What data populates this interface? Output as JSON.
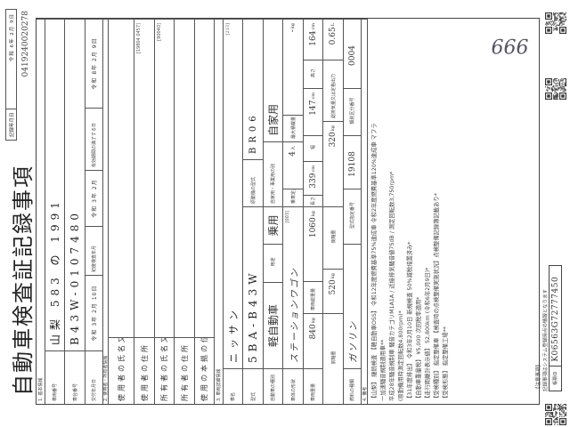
{
  "title": "自動車検査証記録事項",
  "record_date": {
    "label": "記録年月日",
    "value": "令和 6年 2月 9日"
  },
  "serial": "0419240020278",
  "section1": {
    "header": "1. 基本情報",
    "plate_label": "車両番号",
    "plate_value": "山梨 583 の 1991",
    "chassis_label": "車台番号",
    "chassis_value": "B43W-0107480",
    "issue_label": "交付年月日",
    "issue_value": "令和 3年 2月 10日",
    "first_reg_label": "初度検査年月",
    "first_reg_value": "令和 3年 2月",
    "expiry_label": "有効期間の満了する日",
    "expiry_value": "令和 8年 2月 9日"
  },
  "section2": {
    "header": "2. 使用者・所有者情報",
    "user_name_label": "使用者の氏名又は名称",
    "user_addr_label": "使用者の住所",
    "user_addr_code": "[19804 0457]",
    "owner_name_label": "所有者の氏名又は名称",
    "owner_name_code": "[90040]",
    "owner_addr_label": "所有者の住所",
    "base_label": "使用の本拠の位置"
  },
  "section3": {
    "header": "3. 車両詳細情報",
    "maker_label": "車名",
    "maker_value": "ニッサン",
    "maker_code": "[213]",
    "model_label": "型式",
    "model_value": "5BA-B43W",
    "engine_label": "原動機の型式",
    "engine_value": "BR06",
    "kind_label": "自動車の種別",
    "kind_value": "軽自動車",
    "use_label": "用途",
    "use_value": "乗用",
    "private_label": "自家用・事業用の別",
    "private_value": "自家用",
    "body_label": "車体の形状",
    "body_value": "ステーションワゴン",
    "body_code": "[003]",
    "capacity_label": "乗車定員",
    "capacity_value": "4",
    "capacity_unit": "人",
    "max_load_label": "最大積載量",
    "max_load_value": "-",
    "max_load_unit": "kg",
    "weight_label": "車両重量",
    "weight_value": "840",
    "weight_unit": "kg",
    "gross_label": "車両総重量",
    "gross_value": "1060",
    "gross_unit": "kg",
    "length_label": "長さ",
    "length_value": "339",
    "length_unit": "cm",
    "width_label": "幅",
    "width_value": "147",
    "width_unit": "cm",
    "height_label": "高さ",
    "height_value": "164",
    "height_unit": "cm",
    "front_axle_label": "前軸重",
    "front_axle_value": "520",
    "front_axle_unit": "kg",
    "rear_axle_label": "後軸重",
    "rear_axle_value": "320",
    "rear_axle_unit": "kg",
    "displacement_label": "総排気量又は定格出力",
    "displacement_value": "0.65",
    "displacement_unit": "L",
    "fuel_label": "燃料の種類",
    "fuel_value": "ガソリン",
    "type_no_label": "型式指定番号",
    "type_no_value": "19108",
    "class_no_label": "類別区分番号",
    "class_no_value": "0004"
  },
  "section4": {
    "header": "4. 備考",
    "lines": [
      "【山梨】 継続検査 【軽自動車OSS】 令和12年度燃費基準75%達成車 令和2年度燃費基準120%達成車 マフラ",
      "ー加速騒音規制適用車**",
      "平成28年騒音規制車 騒音カテゴリM1A1A / 近接排気騒音値75dB / 測定回転数3,750rpm*",
      "(原動機用時測定回転数4,800rpm)*",
      "【31年度排出】 令和3年2月10日 新規検査 50%減税措置済み*",
      "【自動車重量税】 ¥5,000 次回税率適用*",
      "【走行距離計表示値】 52,800km (令和6年2月9日)*",
      "【受検種別】 指定整備車 【検査時の点検整備実施状況】点検整備記録簿記載あり*",
      "【受検形態】 指定整備工場**"
    ]
  },
  "handwritten": "666",
  "notes": {
    "header": "【注意事項】",
    "text": "記録事項はシステム登録時点の情報となります",
    "form_id_label": "帳票ID",
    "form_id_value": "K06563G72777450"
  }
}
